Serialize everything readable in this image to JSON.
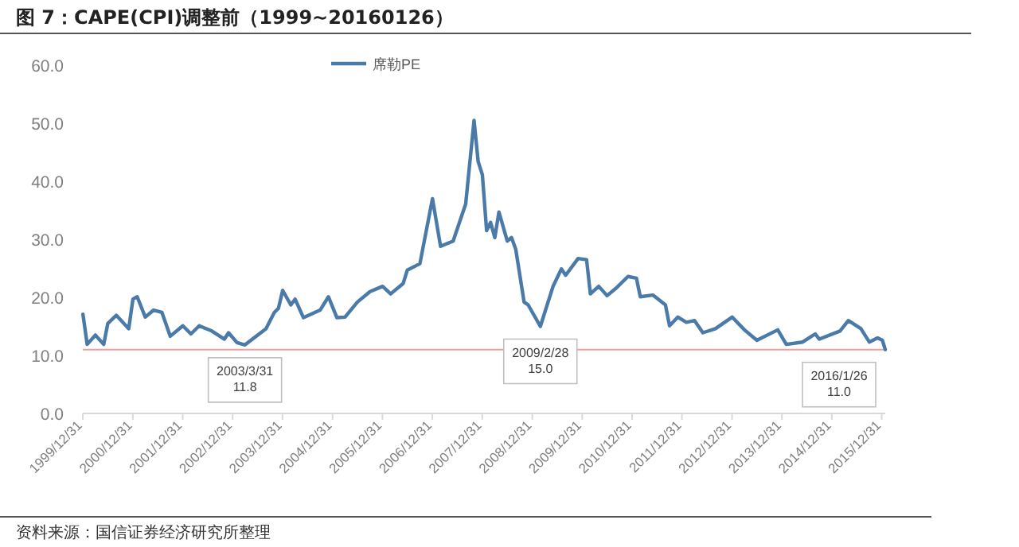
{
  "chart_data": {
    "type": "line",
    "title": "图 7：CAPE(CPI)调整前（1999~20160126）",
    "x": [
      "2000-01",
      "2000-02",
      "2000-04",
      "2000-06",
      "2000-07",
      "2000-09",
      "2000-12",
      "2001-01",
      "2001-02",
      "2001-04",
      "2001-06",
      "2001-08",
      "2001-10",
      "2002-01",
      "2002-03",
      "2002-05",
      "2002-08",
      "2002-11",
      "2002-12",
      "2003-02",
      "2003-03-31",
      "2003-09",
      "2003-11",
      "2003-12",
      "2004-01",
      "2004-03",
      "2004-04",
      "2004-06",
      "2004-10",
      "2004-12",
      "2005-02",
      "2005-04",
      "2005-07",
      "2005-10",
      "2006-01",
      "2006-03",
      "2006-06",
      "2006-07",
      "2006-10",
      "2007-01",
      "2007-03",
      "2007-06",
      "2007-09",
      "2007-11",
      "2007-12",
      "2008-01",
      "2008-02",
      "2008-03",
      "2008-04",
      "2008-05",
      "2008-07",
      "2008-08",
      "2008-09",
      "2008-11",
      "2008-12",
      "2009-02-28",
      "2009-06",
      "2009-08",
      "2009-09",
      "2009-12",
      "2010-02",
      "2010-03",
      "2010-05",
      "2010-07",
      "2010-09",
      "2010-12",
      "2011-02",
      "2011-03",
      "2011-06",
      "2011-09",
      "2011-10",
      "2011-12",
      "2012-02",
      "2012-04",
      "2012-06",
      "2012-09",
      "2013-01",
      "2013-04",
      "2013-07",
      "2013-12",
      "2014-02",
      "2014-06",
      "2014-09",
      "2014-10",
      "2015-03",
      "2015-05",
      "2015-08",
      "2015-10",
      "2015-12",
      "2016-01-05",
      "2016-01-26"
    ],
    "series": [
      {
        "name": "席勒PE",
        "color": "#4a7aa8",
        "values": [
          17.1,
          11.9,
          13.5,
          11.9,
          15.5,
          16.9,
          14.6,
          19.7,
          20.1,
          16.6,
          17.8,
          17.4,
          13.3,
          15.1,
          13.7,
          15.1,
          14.2,
          12.8,
          13.9,
          12.2,
          11.8,
          14.6,
          17.4,
          18.1,
          21.2,
          18.7,
          19.7,
          16.5,
          17.8,
          20.1,
          16.5,
          16.6,
          19.2,
          21.0,
          21.9,
          20.6,
          22.4,
          24.7,
          25.8,
          37.0,
          28.8,
          29.7,
          36.1,
          50.5,
          43.4,
          41.1,
          31.5,
          32.9,
          30.3,
          34.7,
          29.7,
          30.3,
          28.3,
          19.2,
          18.7,
          15.0,
          21.9,
          24.9,
          23.8,
          26.7,
          26.5,
          20.6,
          21.9,
          20.3,
          21.5,
          23.6,
          23.3,
          20.1,
          20.4,
          18.7,
          15.1,
          16.6,
          15.7,
          16.0,
          13.9,
          14.6,
          16.6,
          14.4,
          12.6,
          14.4,
          11.9,
          12.3,
          13.7,
          12.8,
          14.2,
          16.0,
          14.6,
          12.3,
          13.0,
          12.6,
          11.0
        ]
      }
    ],
    "xlim": [
      "1999-12-31",
      "2016-01-26"
    ],
    "xticks": [
      {
        "value": "1999-12-31",
        "label": "1999/12/31"
      },
      {
        "value": "2000-12-31",
        "label": "2000/12/31"
      },
      {
        "value": "2001-12-31",
        "label": "2001/12/31"
      },
      {
        "value": "2002-12-31",
        "label": "2002/12/31"
      },
      {
        "value": "2003-12-31",
        "label": "2003/12/31"
      },
      {
        "value": "2004-12-31",
        "label": "2004/12/31"
      },
      {
        "value": "2005-12-31",
        "label": "2005/12/31"
      },
      {
        "value": "2006-12-31",
        "label": "2006/12/31"
      },
      {
        "value": "2007-12-31",
        "label": "2007/12/31"
      },
      {
        "value": "2008-12-31",
        "label": "2008/12/31"
      },
      {
        "value": "2009-12-31",
        "label": "2009/12/31"
      },
      {
        "value": "2010-12-31",
        "label": "2010/12/31"
      },
      {
        "value": "2011-12-31",
        "label": "2011/12/31"
      },
      {
        "value": "2012-12-31",
        "label": "2012/12/31"
      },
      {
        "value": "2013-12-31",
        "label": "2013/12/31"
      },
      {
        "value": "2014-12-31",
        "label": "2014/12/31"
      },
      {
        "value": "2015-12-31",
        "label": "2015/12/31"
      }
    ],
    "ylim": [
      0,
      60
    ],
    "yticks": [
      {
        "value": 0,
        "label": "0.0"
      },
      {
        "value": 10,
        "label": "10.0"
      },
      {
        "value": 20,
        "label": "20.0"
      },
      {
        "value": 30,
        "label": "30.0"
      },
      {
        "value": 40,
        "label": "40.0"
      },
      {
        "value": 50,
        "label": "50.0"
      },
      {
        "value": 60,
        "label": "60.0"
      }
    ],
    "ref_lines": [
      {
        "axis": "y",
        "value": 11.0,
        "color": "#e8a0a0"
      }
    ],
    "legend": "top",
    "annotations": [
      {
        "text": "2003/3/31\n11.8",
        "x": "2003-03-31",
        "y": 11.8
      },
      {
        "text": "2009/2/28\n15.0",
        "x": "2009-02-28",
        "y": 15.0
      },
      {
        "text": "2016/1/26\n11.0",
        "x": "2016-01-26",
        "y": 11.0
      },
      "资料来源：国信证券经济研究所整理"
    ]
  }
}
